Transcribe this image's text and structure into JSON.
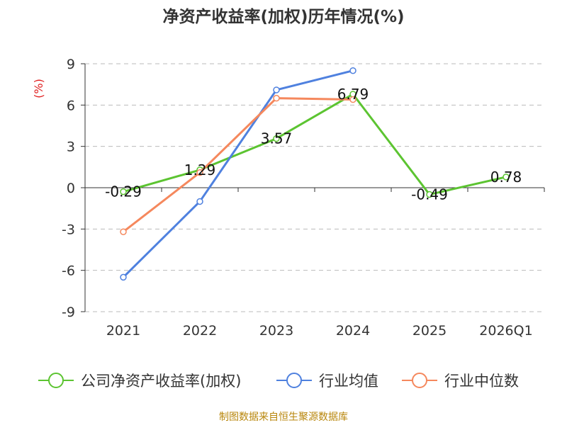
{
  "title": "净资产收益率(加权)历年情况(%)",
  "footer": "制图数据来自恒生聚源数据库",
  "chart_data": {
    "type": "line",
    "title": "净资产收益率(加权)历年情况(%)",
    "ylabel": "(%)",
    "xlabel": "",
    "categories": [
      "2021",
      "2022",
      "2023",
      "2024",
      "2025",
      "2026Q1"
    ],
    "ylim": [
      -9,
      9
    ],
    "yticks": [
      9,
      6,
      3,
      0,
      -3,
      -6,
      -9
    ],
    "grid": true,
    "legend_position": "bottom",
    "series": [
      {
        "name": "公司净资产收益率(加权)",
        "color": "#5cc431",
        "values": [
          -0.29,
          1.29,
          3.57,
          6.79,
          -0.49,
          0.78
        ],
        "labels": [
          "-0.29",
          "1.29",
          "3.57",
          "6.79",
          "-0.49",
          "0.78"
        ]
      },
      {
        "name": "行业均值",
        "color": "#4f81df",
        "values": [
          -6.5,
          -1.0,
          7.1,
          8.5,
          null,
          null
        ]
      },
      {
        "name": "行业中位数",
        "color": "#f5885d",
        "values": [
          -3.2,
          1.1,
          6.5,
          6.4,
          null,
          null
        ]
      }
    ]
  }
}
